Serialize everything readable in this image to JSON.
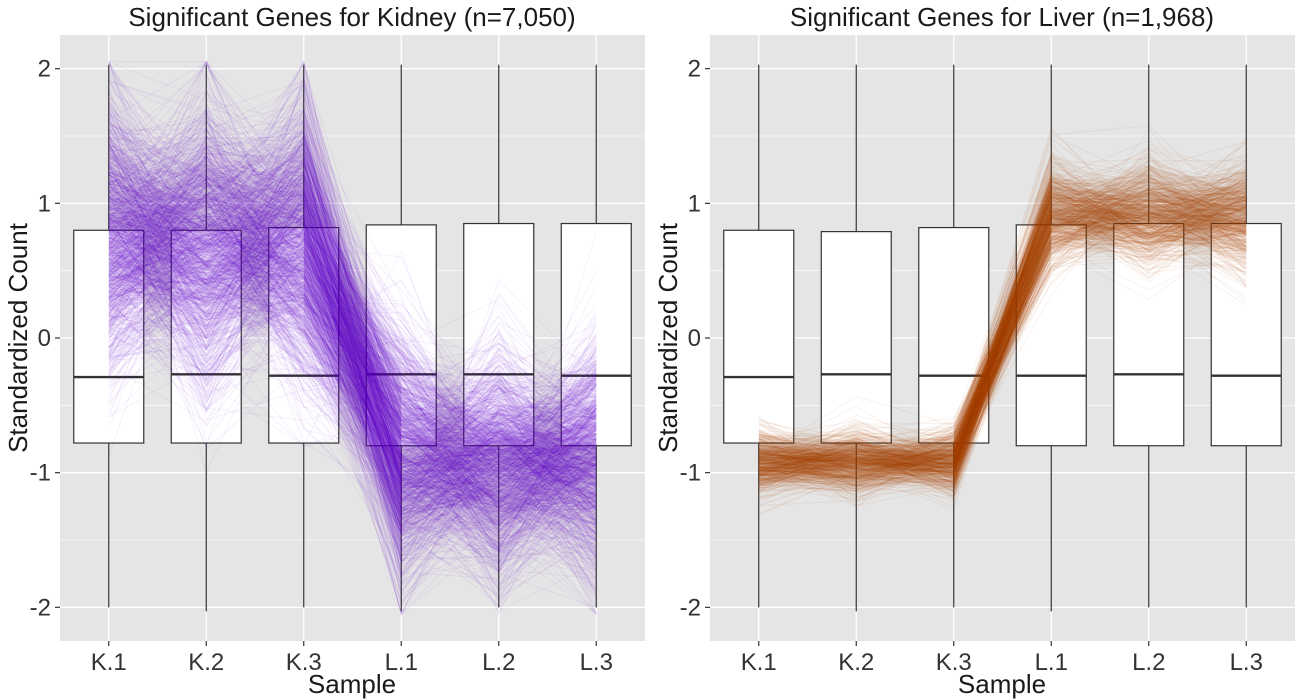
{
  "chart_data": [
    {
      "type": "parallel-coordinates-boxplot",
      "title": "Significant Genes for Kidney (n=7,050)",
      "xlabel": "Sample",
      "ylabel": "Standardized Count",
      "categories": [
        "K.1",
        "K.2",
        "K.3",
        "L.1",
        "L.2",
        "L.3"
      ],
      "ylim": [
        -2.25,
        2.25
      ],
      "yticks": [
        2,
        1,
        0,
        -1,
        -2
      ],
      "ytick_labels": [
        "2",
        "1",
        "0",
        "-1",
        "-2"
      ],
      "line_color": "#6a00c4",
      "boxplot": {
        "whisker_low": [
          -2.0,
          -2.03,
          -2.0,
          -2.03,
          -2.0,
          -2.0
        ],
        "q1": [
          -0.78,
          -0.78,
          -0.78,
          -0.8,
          -0.8,
          -0.8
        ],
        "median": [
          -0.29,
          -0.27,
          -0.28,
          -0.27,
          -0.27,
          -0.28
        ],
        "q3": [
          0.8,
          0.8,
          0.82,
          0.84,
          0.85,
          0.85
        ],
        "whisker_high": [
          2.03,
          2.03,
          2.03,
          2.03,
          2.03,
          2.03
        ]
      },
      "profile_summary": {
        "center": [
          0.75,
          0.7,
          0.75,
          -0.88,
          -0.95,
          -0.9
        ],
        "spread": [
          0.5,
          0.5,
          0.5,
          0.45,
          0.4,
          0.45
        ]
      }
    },
    {
      "type": "parallel-coordinates-boxplot",
      "title": "Significant Genes for Liver (n=1,968)",
      "xlabel": "Sample",
      "ylabel": "Standardized Count",
      "categories": [
        "K.1",
        "K.2",
        "K.3",
        "L.1",
        "L.2",
        "L.3"
      ],
      "ylim": [
        -2.25,
        2.25
      ],
      "yticks": [
        2,
        1,
        0,
        -1,
        -2
      ],
      "ytick_labels": [
        "2",
        "1",
        "0",
        "-1",
        "-2"
      ],
      "line_color": "#a84400",
      "boxplot": {
        "whisker_low": [
          -2.0,
          -2.03,
          -2.0,
          -2.03,
          -2.0,
          -2.0
        ],
        "q1": [
          -0.78,
          -0.78,
          -0.78,
          -0.8,
          -0.8,
          -0.8
        ],
        "median": [
          -0.29,
          -0.27,
          -0.28,
          -0.28,
          -0.27,
          -0.28
        ],
        "q3": [
          0.8,
          0.79,
          0.82,
          0.84,
          0.85,
          0.85
        ],
        "whisker_high": [
          2.03,
          2.03,
          2.03,
          2.03,
          2.03,
          2.03
        ]
      },
      "profile_summary": {
        "center": [
          -0.92,
          -0.92,
          -0.92,
          0.92,
          0.9,
          0.9
        ],
        "spread": [
          0.12,
          0.12,
          0.12,
          0.2,
          0.2,
          0.2
        ]
      }
    }
  ],
  "colors": {
    "panel_background": "#e5e5e5",
    "grid": "#ffffff",
    "box_fill": "#ffffff",
    "box_stroke": "#333333"
  }
}
